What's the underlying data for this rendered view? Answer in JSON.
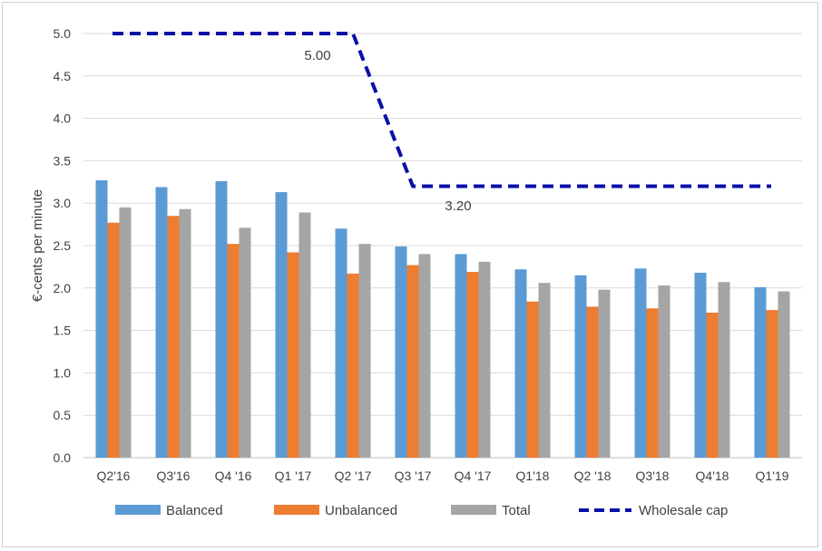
{
  "chart_data": {
    "type": "bar",
    "title": "",
    "ylabel": "€-cents per minute",
    "xlabel": "",
    "ylim": [
      0,
      5
    ],
    "yticks": [
      "0.0",
      "0.5",
      "1.0",
      "1.5",
      "2.0",
      "2.5",
      "3.0",
      "3.5",
      "4.0",
      "4.5",
      "5.0"
    ],
    "grid": true,
    "legend_position": "bottom",
    "categories": [
      "Q2'16",
      "Q3'16",
      "Q4 '16",
      "Q1 '17",
      "Q2 '17",
      "Q3 '17",
      "Q4 '17",
      "Q1'18",
      "Q2 '18",
      "Q3'18",
      "Q4'18",
      "Q1'19"
    ],
    "series": [
      {
        "name": "Balanced",
        "color": "#5B9BD5",
        "values": [
          3.27,
          3.19,
          3.26,
          3.13,
          2.7,
          2.49,
          2.4,
          2.22,
          2.15,
          2.23,
          2.18,
          2.01
        ]
      },
      {
        "name": "Unbalanced",
        "color": "#ED7D31",
        "values": [
          2.77,
          2.85,
          2.52,
          2.42,
          2.17,
          2.27,
          2.19,
          1.84,
          1.78,
          1.76,
          1.71,
          1.74
        ]
      },
      {
        "name": "Total",
        "color": "#A5A5A5",
        "values": [
          2.95,
          2.93,
          2.71,
          2.89,
          2.52,
          2.4,
          2.31,
          2.06,
          1.98,
          2.03,
          2.07,
          1.96
        ]
      }
    ],
    "line_series": {
      "name": "Wholesale cap",
      "color": "#0A0FA8",
      "style": "dashed",
      "values": [
        5.0,
        5.0,
        5.0,
        5.0,
        5.0,
        3.2,
        3.2,
        3.2,
        3.2,
        3.2,
        3.2,
        3.2
      ]
    },
    "annotations": [
      {
        "text": "5.00",
        "value": 5.0
      },
      {
        "text": "3.20",
        "value": 3.2
      }
    ]
  }
}
